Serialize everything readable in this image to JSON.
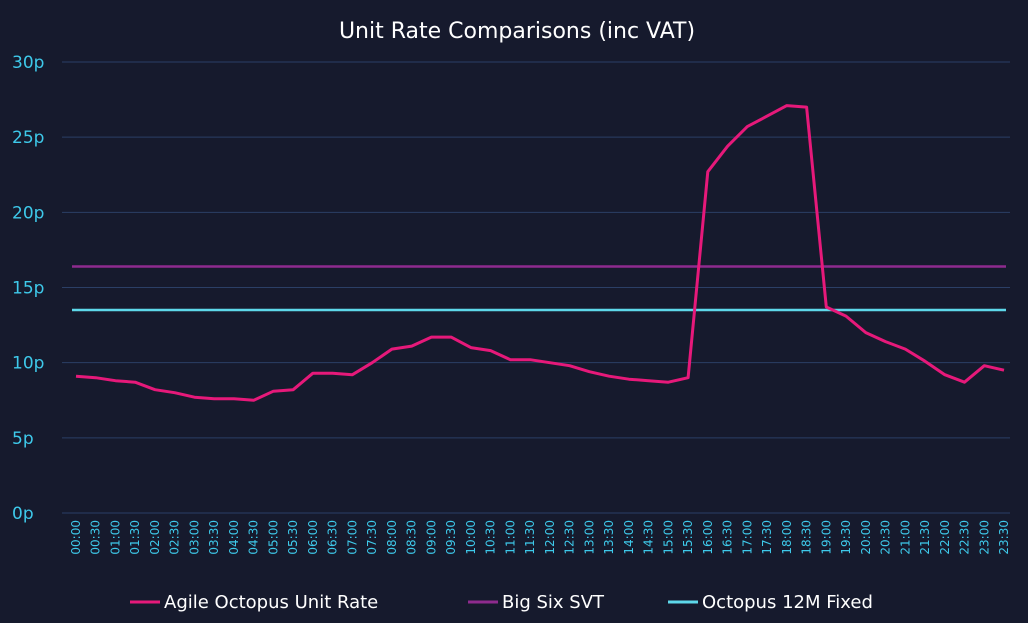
{
  "chart_data": {
    "type": "line",
    "title": "Unit Rate Comparisons (inc VAT)",
    "xlabel": "",
    "ylabel": "",
    "ylim": [
      0,
      30
    ],
    "y_ticks": [
      "0p",
      "5p",
      "10p",
      "15p",
      "20p",
      "25p",
      "30p"
    ],
    "grid": true,
    "legend_position": "bottom",
    "x": [
      "00:00",
      "00:30",
      "01:00",
      "01:30",
      "02:00",
      "02:30",
      "03:00",
      "03:30",
      "04:00",
      "04:30",
      "05:00",
      "05:30",
      "06:00",
      "06:30",
      "07:00",
      "07:30",
      "08:00",
      "08:30",
      "09:00",
      "09:30",
      "10:00",
      "10:30",
      "11:00",
      "11:30",
      "12:00",
      "12:30",
      "13:00",
      "13:30",
      "14:00",
      "14:30",
      "15:00",
      "15:30",
      "16:00",
      "16:30",
      "17:00",
      "17:30",
      "18:00",
      "18:30",
      "19:00",
      "19:30",
      "20:00",
      "20:30",
      "21:00",
      "21:30",
      "22:00",
      "22:30",
      "23:00",
      "23:30"
    ],
    "series": [
      {
        "name": "Agile Octopus Unit Rate",
        "color": "#e6197a",
        "values": [
          9.1,
          9.0,
          8.8,
          8.7,
          8.2,
          8.0,
          7.7,
          7.6,
          7.6,
          7.5,
          8.1,
          8.2,
          9.3,
          9.3,
          9.2,
          10.0,
          10.9,
          11.1,
          11.7,
          11.7,
          11.0,
          10.8,
          10.2,
          10.2,
          10.0,
          9.8,
          9.4,
          9.1,
          8.9,
          8.8,
          8.7,
          9.0,
          22.7,
          24.4,
          25.7,
          26.4,
          27.1,
          27.0,
          13.7,
          13.1,
          12.0,
          11.4,
          10.9,
          10.1,
          9.2,
          8.7,
          9.8,
          9.5
        ]
      },
      {
        "name": "Big Six SVT",
        "color": "#8e2b8e",
        "values": [
          16.4,
          16.4,
          16.4,
          16.4,
          16.4,
          16.4,
          16.4,
          16.4,
          16.4,
          16.4,
          16.4,
          16.4,
          16.4,
          16.4,
          16.4,
          16.4,
          16.4,
          16.4,
          16.4,
          16.4,
          16.4,
          16.4,
          16.4,
          16.4,
          16.4,
          16.4,
          16.4,
          16.4,
          16.4,
          16.4,
          16.4,
          16.4,
          16.4,
          16.4,
          16.4,
          16.4,
          16.4,
          16.4,
          16.4,
          16.4,
          16.4,
          16.4,
          16.4,
          16.4,
          16.4,
          16.4,
          16.4,
          16.4
        ]
      },
      {
        "name": "Octopus 12M Fixed",
        "color": "#5ed8ea",
        "values": [
          13.5,
          13.5,
          13.5,
          13.5,
          13.5,
          13.5,
          13.5,
          13.5,
          13.5,
          13.5,
          13.5,
          13.5,
          13.5,
          13.5,
          13.5,
          13.5,
          13.5,
          13.5,
          13.5,
          13.5,
          13.5,
          13.5,
          13.5,
          13.5,
          13.5,
          13.5,
          13.5,
          13.5,
          13.5,
          13.5,
          13.5,
          13.5,
          13.5,
          13.5,
          13.5,
          13.5,
          13.5,
          13.5,
          13.5,
          13.5,
          13.5,
          13.5,
          13.5,
          13.5,
          13.5,
          13.5,
          13.5,
          13.5
        ]
      }
    ]
  }
}
